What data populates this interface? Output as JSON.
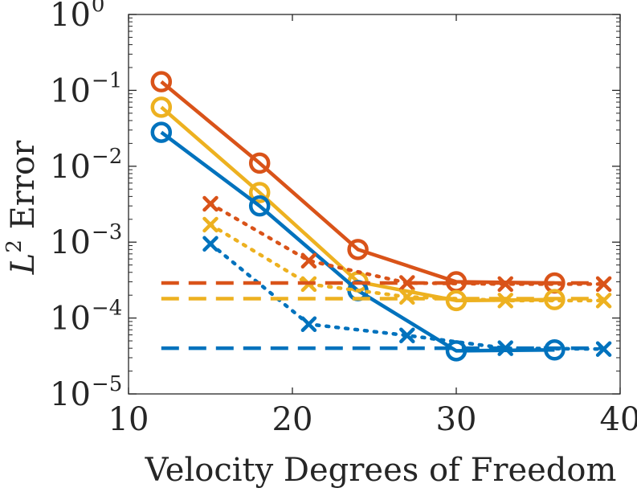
{
  "chart_data": {
    "type": "line",
    "title": "",
    "xlabel": "Velocity Degrees of Freedom",
    "ylabel": {
      "var": "L",
      "exp": "2",
      "rest": " Error"
    },
    "xlim": [
      10,
      40
    ],
    "ylim_log10": [
      -5,
      0
    ],
    "y_scale": "log",
    "grid": false,
    "x_ticks": [
      {
        "value": 10,
        "label": "10"
      },
      {
        "value": 20,
        "label": "20"
      },
      {
        "value": 30,
        "label": "30"
      },
      {
        "value": 40,
        "label": "40"
      }
    ],
    "y_ticks": [
      {
        "exp": 0,
        "base": "10",
        "sup": "0"
      },
      {
        "exp": -1,
        "base": "10",
        "sup": "−1"
      },
      {
        "exp": -2,
        "base": "10",
        "sup": "−2"
      },
      {
        "exp": -3,
        "base": "10",
        "sup": "−3"
      },
      {
        "exp": -4,
        "base": "10",
        "sup": "−4"
      },
      {
        "exp": -5,
        "base": "10",
        "sup": "−5"
      }
    ],
    "colors": {
      "blue": "#0072BD",
      "orange": "#D95319",
      "yellow": "#EDB120",
      "axis": "#262626"
    },
    "series": [
      {
        "name": "orange-circle-solid",
        "color": "orange",
        "style": "solid",
        "marker": "circle",
        "x": [
          12,
          18,
          24,
          30,
          36
        ],
        "y": [
          0.13,
          0.011,
          0.0008,
          0.0003,
          0.00029
        ]
      },
      {
        "name": "yellow-circle-solid",
        "color": "yellow",
        "style": "solid",
        "marker": "circle",
        "x": [
          12,
          18,
          24,
          30,
          36
        ],
        "y": [
          0.06,
          0.0045,
          0.0003,
          0.00017,
          0.000175
        ]
      },
      {
        "name": "blue-circle-solid",
        "color": "blue",
        "style": "solid",
        "marker": "circle",
        "x": [
          12,
          18,
          24,
          30,
          36
        ],
        "y": [
          0.028,
          0.003,
          0.00023,
          3.7e-05,
          3.8e-05
        ]
      },
      {
        "name": "orange-cross-dotted",
        "color": "orange",
        "style": "dotted",
        "marker": "cross",
        "x": [
          15,
          21,
          27,
          33,
          39
        ],
        "y": [
          0.0032,
          0.00057,
          0.00029,
          0.00028,
          0.00028
        ]
      },
      {
        "name": "yellow-cross-dotted",
        "color": "yellow",
        "style": "dotted",
        "marker": "cross",
        "x": [
          15,
          21,
          27,
          33,
          39
        ],
        "y": [
          0.0017,
          0.00028,
          0.00019,
          0.00017,
          0.00017
        ]
      },
      {
        "name": "blue-cross-dotted",
        "color": "blue",
        "style": "dotted",
        "marker": "cross",
        "x": [
          15,
          21,
          27,
          33,
          39
        ],
        "y": [
          0.00095,
          8.3e-05,
          5.9e-05,
          4e-05,
          3.9e-05
        ]
      },
      {
        "name": "orange-reference-dashed",
        "color": "orange",
        "style": "dashed",
        "marker": "none",
        "x": [
          12,
          39
        ],
        "y": [
          0.00029,
          0.00029
        ]
      },
      {
        "name": "yellow-reference-dashed",
        "color": "yellow",
        "style": "dashed",
        "marker": "none",
        "x": [
          12,
          39
        ],
        "y": [
          0.00018,
          0.00018
        ]
      },
      {
        "name": "blue-reference-dashed",
        "color": "blue",
        "style": "dashed",
        "marker": "none",
        "x": [
          12,
          39
        ],
        "y": [
          4e-05,
          4e-05
        ]
      }
    ]
  }
}
